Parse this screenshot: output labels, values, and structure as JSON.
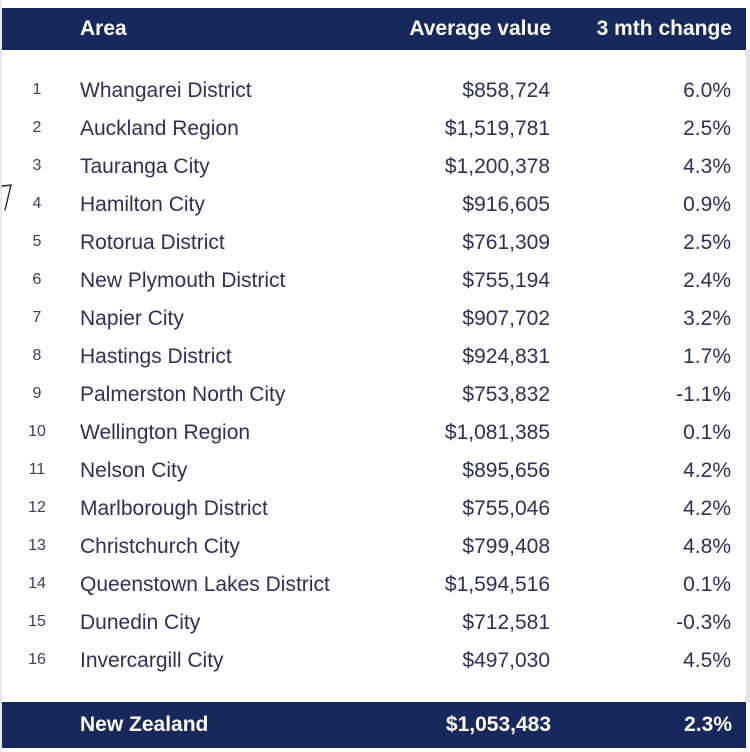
{
  "header": {
    "area": "Area",
    "average_value": "Average value",
    "change": "3 mth change"
  },
  "rows": [
    {
      "rank": "1",
      "area": "Whangarei District",
      "value": "$858,724",
      "change": "6.0%"
    },
    {
      "rank": "2",
      "area": "Auckland Region",
      "value": "$1,519,781",
      "change": "2.5%"
    },
    {
      "rank": "3",
      "area": "Tauranga City",
      "value": "$1,200,378",
      "change": "4.3%"
    },
    {
      "rank": "4",
      "area": "Hamilton City",
      "value": "$916,605",
      "change": "0.9%"
    },
    {
      "rank": "5",
      "area": "Rotorua District",
      "value": "$761,309",
      "change": "2.5%"
    },
    {
      "rank": "6",
      "area": "New Plymouth District",
      "value": "$755,194",
      "change": "2.4%"
    },
    {
      "rank": "7",
      "area": "Napier City",
      "value": "$907,702",
      "change": "3.2%"
    },
    {
      "rank": "8",
      "area": "Hastings District",
      "value": "$924,831",
      "change": "1.7%"
    },
    {
      "rank": "9",
      "area": "Palmerston North City",
      "value": "$753,832",
      "change": "-1.1%"
    },
    {
      "rank": "10",
      "area": "Wellington Region",
      "value": "$1,081,385",
      "change": "0.1%"
    },
    {
      "rank": "11",
      "area": "Nelson City",
      "value": "$895,656",
      "change": "4.2%"
    },
    {
      "rank": "12",
      "area": "Marlborough District",
      "value": "$755,046",
      "change": "4.2%"
    },
    {
      "rank": "13",
      "area": "Christchurch City",
      "value": "$799,408",
      "change": "4.8%"
    },
    {
      "rank": "14",
      "area": "Queenstown Lakes District",
      "value": "$1,594,516",
      "change": "0.1%"
    },
    {
      "rank": "15",
      "area": "Dunedin City",
      "value": "$712,581",
      "change": "-0.3%"
    },
    {
      "rank": "16",
      "area": "Invercargill City",
      "value": "$497,030",
      "change": "4.5%"
    }
  ],
  "footer": {
    "area": "New Zealand",
    "value": "$1,053,483",
    "change": "2.3%"
  },
  "colors": {
    "header_bg": "#17295c",
    "text": "#2b3157"
  }
}
